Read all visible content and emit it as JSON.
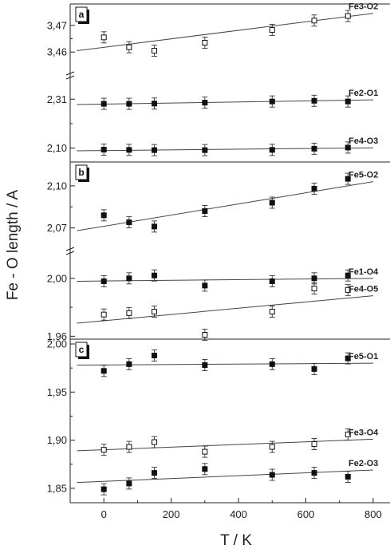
{
  "chart_data": {
    "type": "scatter",
    "xlabel": "T / K",
    "ylabel": "Fe - O length / A",
    "xlim": [
      -100,
      850
    ],
    "x_ticks": [
      0,
      200,
      400,
      600,
      800
    ],
    "grid": false,
    "panels": [
      {
        "letter": "a",
        "segments": [
          {
            "ylim": [
              3.452,
              3.478
            ],
            "ticks": [
              3.46,
              3.47
            ],
            "tick_labels": [
              "3,46",
              "3,47"
            ]
          },
          {
            "ylim": [
              2.04,
              2.4
            ],
            "ticks": [
              2.1,
              2.31
            ],
            "tick_labels": [
              "2,10",
              "2,31"
            ]
          }
        ],
        "series": [
          {
            "name": "Fe3-O2",
            "marker": "open",
            "segment": 0,
            "x": [
              0,
              75,
              150,
              300,
              500,
              625,
              725
            ],
            "y": [
              3.4655,
              3.4618,
              3.4605,
              3.4635,
              3.4683,
              3.4718,
              3.4735
            ],
            "fit": {
              "x": [
                -80,
                800
              ],
              "y": [
                3.4605,
                3.4745
              ]
            }
          },
          {
            "name": "Fe2-O1",
            "marker": "filled",
            "segment": 1,
            "x": [
              0,
              75,
              150,
              300,
              500,
              625,
              725
            ],
            "y": [
              2.29,
              2.29,
              2.291,
              2.295,
              2.3,
              2.303,
              2.3
            ],
            "fit": {
              "x": [
                -80,
                800
              ],
              "y": [
                2.287,
                2.307
              ]
            }
          },
          {
            "name": "Fe4-O3",
            "marker": "filled",
            "segment": 1,
            "x": [
              0,
              75,
              150,
              300,
              500,
              625,
              725
            ],
            "y": [
              2.093,
              2.092,
              2.091,
              2.091,
              2.092,
              2.097,
              2.102
            ],
            "fit": {
              "x": [
                -80,
                800
              ],
              "y": [
                2.088,
                2.101
              ]
            }
          }
        ]
      },
      {
        "letter": "b",
        "segments": [
          {
            "ylim": [
              2.055,
              2.117
            ],
            "ticks": [
              2.07,
              2.1
            ],
            "tick_labels": [
              "2,07",
              "2,10"
            ]
          },
          {
            "ylim": [
              1.958,
              2.017
            ],
            "ticks": [
              1.96,
              2.0
            ],
            "tick_labels": [
              "1,96",
              "2,00"
            ]
          }
        ],
        "series": [
          {
            "name": "Fe5-O2",
            "marker": "filled",
            "segment": 0,
            "x": [
              0,
              75,
              150,
              300,
              500,
              625,
              725
            ],
            "y": [
              2.079,
              2.074,
              2.071,
              2.082,
              2.088,
              2.098,
              2.105
            ],
            "fit": {
              "x": [
                -80,
                800
              ],
              "y": [
                2.068,
                2.103
              ]
            }
          },
          {
            "name": "Fe1-O4",
            "marker": "filled",
            "segment": 1,
            "x": [
              0,
              75,
              150,
              300,
              500,
              625,
              725
            ],
            "y": [
              1.998,
              2.0,
              2.002,
              1.995,
              1.998,
              2.0,
              2.002
            ],
            "fit": {
              "x": [
                -80,
                800
              ],
              "y": [
                1.998,
                2.0
              ]
            }
          },
          {
            "name": "Fe4-O5",
            "marker": "open",
            "segment": 1,
            "x": [
              0,
              75,
              150,
              300,
              500,
              625,
              725
            ],
            "y": [
              1.975,
              1.976,
              1.977,
              1.961,
              1.977,
              1.993,
              1.992
            ],
            "fit": {
              "x": [
                -80,
                800
              ],
              "y": [
                1.969,
                1.988
              ]
            }
          }
        ]
      },
      {
        "letter": "c",
        "segments": [
          {
            "ylim": [
              1.835,
              2.005
            ],
            "ticks": [
              1.85,
              1.9,
              1.95,
              2.0
            ],
            "tick_labels": [
              "1,85",
              "1,90",
              "1,95",
              "2,00"
            ]
          }
        ],
        "series": [
          {
            "name": "Fe5-O1",
            "marker": "filled",
            "segment": 0,
            "x": [
              0,
              75,
              150,
              300,
              500,
              625,
              725
            ],
            "y": [
              1.972,
              1.979,
              1.988,
              1.978,
              1.979,
              1.974,
              1.985
            ],
            "fit": {
              "x": [
                -80,
                800
              ],
              "y": [
                1.978,
                1.98
              ]
            }
          },
          {
            "name": "Fe3-O4",
            "marker": "open",
            "segment": 0,
            "x": [
              0,
              75,
              150,
              300,
              500,
              625,
              725
            ],
            "y": [
              1.89,
              1.893,
              1.898,
              1.888,
              1.893,
              1.896,
              1.906
            ],
            "fit": {
              "x": [
                -80,
                800
              ],
              "y": [
                1.889,
                1.901
              ]
            }
          },
          {
            "name": "Fe2-O3",
            "marker": "filled",
            "segment": 0,
            "x": [
              0,
              75,
              150,
              300,
              500,
              625,
              725
            ],
            "y": [
              1.849,
              1.855,
              1.866,
              1.87,
              1.864,
              1.866,
              1.862
            ],
            "fit": {
              "x": [
                -80,
                800
              ],
              "y": [
                1.856,
                1.869
              ]
            }
          }
        ]
      }
    ]
  }
}
